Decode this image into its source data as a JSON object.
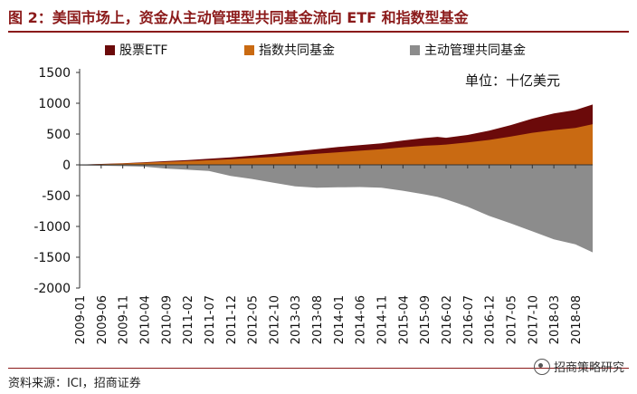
{
  "title": "图 2：美国市场上，资金从主动管理型共同基金流向 ETF 和指数型基金",
  "source": "资料来源：ICI，招商证券",
  "watermark": "招商策略研究",
  "colors": {
    "etf": "#6b0a0a",
    "index": "#c96a12",
    "active": "#8c8c8c",
    "accent": "#8b1a1a"
  },
  "chart_data": {
    "type": "area",
    "unit_label": "单位：十亿美元",
    "legend_position": "top",
    "grid": false,
    "ylim": [
      -2000,
      1500
    ],
    "yticks": [
      1500,
      1000,
      500,
      0,
      -500,
      -1000,
      -1500,
      -2000
    ],
    "xtick_labels": [
      "2009-01",
      "2009-06",
      "2009-11",
      "2010-04",
      "2010-09",
      "2011-02",
      "2011-07",
      "2011-12",
      "2012-05",
      "2012-10",
      "2013-03",
      "2013-08",
      "2014-01",
      "2014-06",
      "2014-11",
      "2015-04",
      "2015-09",
      "2016-02",
      "2016-07",
      "2016-12",
      "2017-05",
      "2017-10",
      "2018-03",
      "2018-08"
    ],
    "series": [
      {
        "name": "股票ETF",
        "key": "etf",
        "points": [
          [
            "2009-01",
            0
          ],
          [
            "2009-06",
            2
          ],
          [
            "2009-11",
            5
          ],
          [
            "2010-04",
            8
          ],
          [
            "2010-09",
            12
          ],
          [
            "2011-02",
            18
          ],
          [
            "2011-07",
            25
          ],
          [
            "2011-12",
            30
          ],
          [
            "2012-05",
            38
          ],
          [
            "2012-10",
            50
          ],
          [
            "2013-03",
            62
          ],
          [
            "2013-08",
            75
          ],
          [
            "2014-01",
            85
          ],
          [
            "2014-06",
            90
          ],
          [
            "2014-11",
            95
          ],
          [
            "2015-04",
            110
          ],
          [
            "2015-09",
            125
          ],
          [
            "2015-12",
            135
          ],
          [
            "2016-02",
            110
          ],
          [
            "2016-07",
            120
          ],
          [
            "2016-12",
            150
          ],
          [
            "2017-05",
            185
          ],
          [
            "2017-10",
            230
          ],
          [
            "2018-03",
            270
          ],
          [
            "2018-08",
            290
          ],
          [
            "2018-12",
            320
          ]
        ]
      },
      {
        "name": "指数共同基金",
        "key": "index",
        "points": [
          [
            "2009-01",
            5
          ],
          [
            "2009-06",
            12
          ],
          [
            "2009-11",
            22
          ],
          [
            "2010-04",
            35
          ],
          [
            "2010-09",
            48
          ],
          [
            "2011-02",
            60
          ],
          [
            "2011-07",
            75
          ],
          [
            "2011-12",
            90
          ],
          [
            "2012-05",
            110
          ],
          [
            "2012-10",
            130
          ],
          [
            "2013-03",
            155
          ],
          [
            "2013-08",
            180
          ],
          [
            "2014-01",
            205
          ],
          [
            "2014-06",
            230
          ],
          [
            "2014-11",
            255
          ],
          [
            "2015-04",
            285
          ],
          [
            "2015-09",
            310
          ],
          [
            "2015-12",
            320
          ],
          [
            "2016-02",
            330
          ],
          [
            "2016-07",
            365
          ],
          [
            "2016-12",
            405
          ],
          [
            "2017-05",
            460
          ],
          [
            "2017-10",
            520
          ],
          [
            "2018-03",
            565
          ],
          [
            "2018-08",
            600
          ],
          [
            "2018-12",
            660
          ]
        ]
      },
      {
        "name": "主动管理共同基金",
        "key": "active",
        "points": [
          [
            "2009-01",
            -10
          ],
          [
            "2009-06",
            -15
          ],
          [
            "2009-11",
            -20
          ],
          [
            "2010-04",
            -30
          ],
          [
            "2010-09",
            -60
          ],
          [
            "2011-02",
            -80
          ],
          [
            "2011-07",
            -100
          ],
          [
            "2011-12",
            -180
          ],
          [
            "2012-05",
            -230
          ],
          [
            "2012-10",
            -290
          ],
          [
            "2013-03",
            -350
          ],
          [
            "2013-08",
            -370
          ],
          [
            "2014-01",
            -365
          ],
          [
            "2014-06",
            -360
          ],
          [
            "2014-11",
            -370
          ],
          [
            "2015-04",
            -420
          ],
          [
            "2015-09",
            -480
          ],
          [
            "2015-12",
            -520
          ],
          [
            "2016-02",
            -560
          ],
          [
            "2016-07",
            -680
          ],
          [
            "2016-12",
            -830
          ],
          [
            "2017-05",
            -950
          ],
          [
            "2017-10",
            -1080
          ],
          [
            "2018-03",
            -1210
          ],
          [
            "2018-08",
            -1290
          ],
          [
            "2018-12",
            -1420
          ]
        ]
      }
    ]
  }
}
